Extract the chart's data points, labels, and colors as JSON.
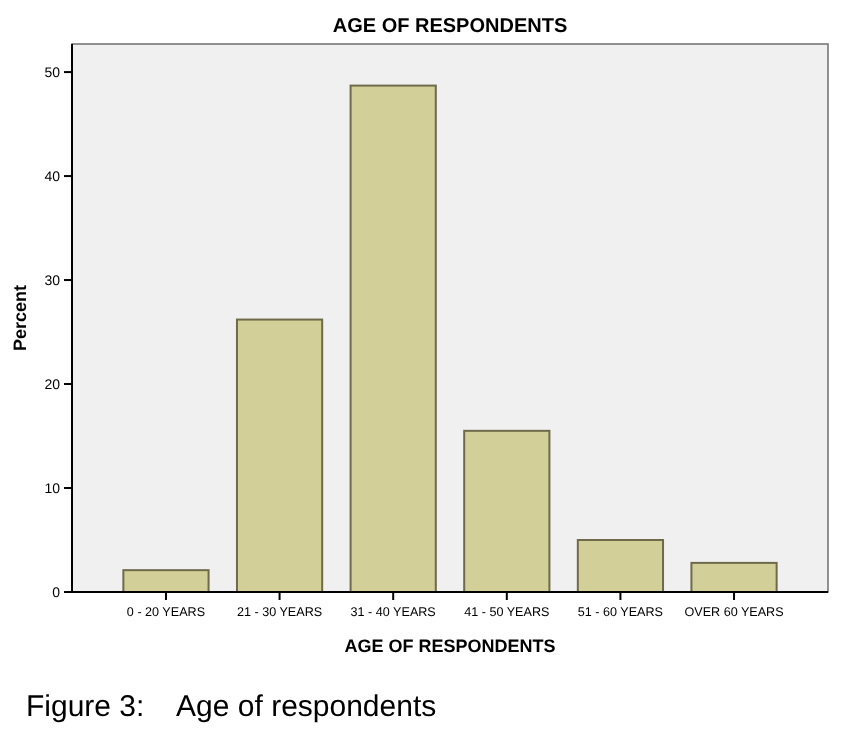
{
  "chart_data": {
    "type": "bar",
    "title": "AGE OF RESPONDENTS",
    "xlabel": "AGE OF RESPONDENTS",
    "ylabel": "Percent",
    "categories": [
      "0 - 20 YEARS",
      "21 - 30 YEARS",
      "31 - 40 YEARS",
      "41 - 50 YEARS",
      "51 - 60 YEARS",
      "OVER 60 YEARS"
    ],
    "values": [
      2.1,
      26.2,
      48.7,
      15.5,
      5.0,
      2.8
    ],
    "color": "#d3cf98",
    "ylim": [
      0,
      52.7
    ],
    "yticks": [
      0,
      10,
      20,
      30,
      40,
      50
    ],
    "grid": false,
    "annotations": [
      "Figure 3:    Age of respondents"
    ]
  }
}
